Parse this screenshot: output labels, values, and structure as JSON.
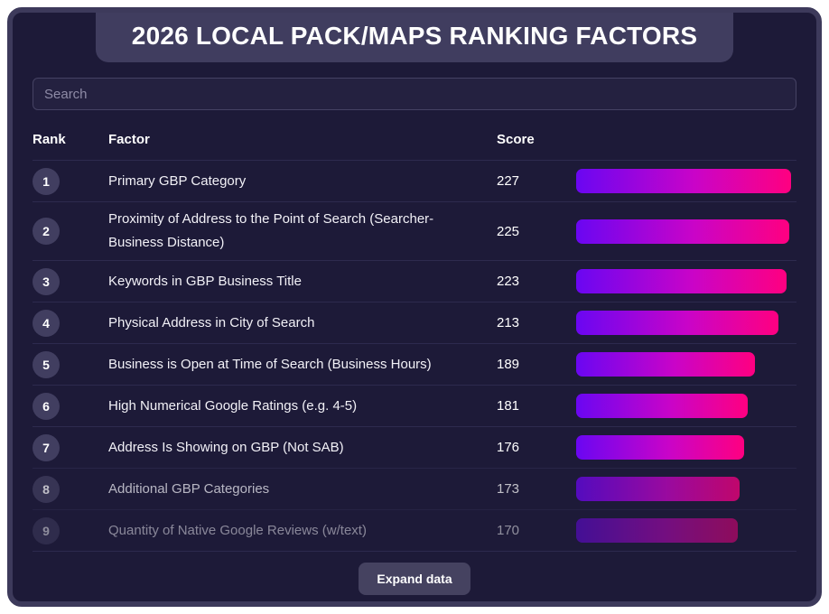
{
  "title": "2026 LOCAL PACK/MAPS RANKING FACTORS",
  "search": {
    "placeholder": "Search",
    "value": ""
  },
  "table": {
    "headers": {
      "rank": "Rank",
      "factor": "Factor",
      "score": "Score"
    },
    "max_score": 227,
    "rows": [
      {
        "rank": "1",
        "factor": "Primary GBP Category",
        "score": 227
      },
      {
        "rank": "2",
        "factor": "Proximity of Address to the Point of Search (Searcher-Business Distance)",
        "score": 225
      },
      {
        "rank": "3",
        "factor": "Keywords in GBP Business Title",
        "score": 223
      },
      {
        "rank": "4",
        "factor": "Physical Address in City of Search",
        "score": 213
      },
      {
        "rank": "5",
        "factor": "Business is Open at Time of Search (Business Hours)",
        "score": 189
      },
      {
        "rank": "6",
        "factor": "High Numerical Google Ratings (e.g. 4-5)",
        "score": 181
      },
      {
        "rank": "7",
        "factor": "Address Is Showing on GBP (Not SAB)",
        "score": 176
      },
      {
        "rank": "8",
        "factor": "Additional GBP Categories",
        "score": 173
      },
      {
        "rank": "9",
        "factor": "Quantity of Native Google Reviews (w/text)",
        "score": 170
      }
    ]
  },
  "footer": {
    "expand_button_label": "Expand data"
  },
  "colors": {
    "page_bg": "#ffffff",
    "card_bg": "#1d1a38",
    "card_border": "#3d3a5b",
    "title_panel_bg": "#403d5f",
    "bar_gradient_start": "#6a06f2",
    "bar_gradient_mid": "#c904c8",
    "bar_gradient_end": "#ff0080",
    "badge_bg": "#413e60",
    "separator": "#2d2a4e",
    "button_bg": "#454260"
  }
}
